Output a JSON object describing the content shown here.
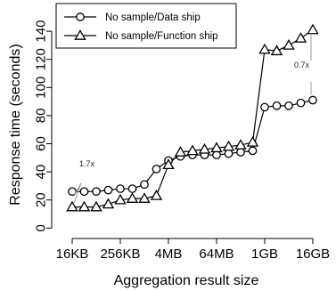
{
  "chart_data": {
    "type": "line",
    "xlabel": "Aggregation result size",
    "ylabel": "Response time (seconds)",
    "ylim": [
      0,
      145
    ],
    "yticks": [
      0,
      20,
      40,
      60,
      80,
      100,
      120,
      140
    ],
    "x_ticks": [
      {
        "index": 1,
        "label": "16KB"
      },
      {
        "index": 5,
        "label": "256KB"
      },
      {
        "index": 9,
        "label": "4MB"
      },
      {
        "index": 13,
        "label": "64MB"
      },
      {
        "index": 17,
        "label": "1GB"
      },
      {
        "index": 21,
        "label": "16GB"
      }
    ],
    "x": [
      1,
      2,
      3,
      4,
      5,
      6,
      7,
      8,
      9,
      10,
      11,
      12,
      13,
      14,
      15,
      16,
      17,
      18,
      19,
      20,
      21
    ],
    "series": [
      {
        "name": "No sample/Data ship",
        "marker": "circle",
        "values": [
          26,
          26,
          26,
          27,
          28,
          28,
          31,
          42,
          48,
          51,
          52,
          52,
          52,
          53,
          54,
          55,
          86,
          87,
          87,
          89,
          91
        ]
      },
      {
        "name": "No sample/Function ship",
        "marker": "triangle",
        "values": [
          15,
          15,
          15,
          17,
          20,
          21,
          21,
          23,
          45,
          54,
          55,
          56,
          57,
          58,
          59,
          61,
          127,
          126,
          130,
          135,
          141
        ]
      }
    ],
    "annotations": [
      {
        "text": "1.7x",
        "x": 1,
        "y_low": 15,
        "y_high": 26
      },
      {
        "text": "0.7x",
        "x": 21,
        "y_low": 91,
        "y_high": 141
      }
    ],
    "legend_position": "top-left",
    "grid": false
  }
}
